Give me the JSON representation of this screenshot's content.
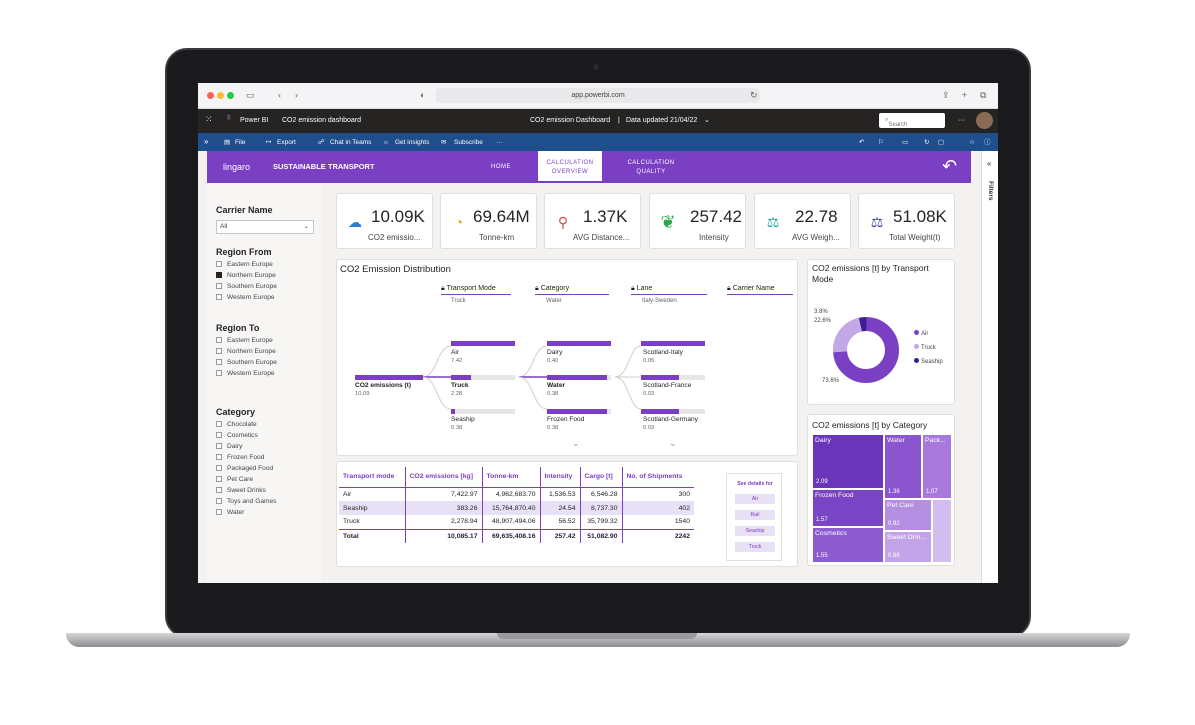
{
  "browser": {
    "url": "app.powerbi.com"
  },
  "pbi": {
    "app_name": "Power BI",
    "report_name": "CO2 emission dashboard",
    "center_title": "CO2 emission Dashboard",
    "data_updated": "Data updated 21/04/22",
    "search_placeholder": "Search"
  },
  "actions": {
    "file": "File",
    "export": "Export",
    "chat": "Chat in Teams",
    "insights": "Get insights",
    "subscribe": "Subscribe",
    "more": "···"
  },
  "header": {
    "logo": "lingaro",
    "title": "SUSTAINABLE TRANSPORT",
    "tabs": [
      {
        "label": "HOME"
      },
      {
        "label": "CALCULATION OVERVIEW"
      },
      {
        "label": "CALCULATION QUALITY"
      }
    ]
  },
  "filters_pane": {
    "label": "Filters"
  },
  "slicers": {
    "carrier": {
      "title": "Carrier Name",
      "value": "All"
    },
    "region_from": {
      "title": "Region From",
      "items": [
        "Eastern Europe",
        "Northern Europe",
        "Southern Europe",
        "Western Europe"
      ]
    },
    "region_to": {
      "title": "Region To",
      "items": [
        "Eastern Europe",
        "Northern Europe",
        "Southern Europe",
        "Western Europe"
      ]
    },
    "category": {
      "title": "Category",
      "items": [
        "Chocolate",
        "Cosmetics",
        "Dairy",
        "Frozen Food",
        "Packaged Food",
        "Pet Care",
        "Sweet Drinks",
        "Toys and Games",
        "Water"
      ]
    }
  },
  "kpis": [
    {
      "value": "10.09K",
      "label": "CO2 emissio...",
      "icon": "cloud-co2-icon"
    },
    {
      "value": "69.64M",
      "label": "Tonne-km",
      "icon": "gauge-icon"
    },
    {
      "value": "1.37K",
      "label": "AVG Distance...",
      "icon": "route-icon"
    },
    {
      "value": "257.42",
      "label": "Intensity",
      "icon": "leaf-icon"
    },
    {
      "value": "22.78",
      "label": "AVG Weigh...",
      "icon": "scale-icon"
    },
    {
      "value": "51.08K",
      "label": "Total Weight(t)",
      "icon": "weight-scale-icon"
    }
  ],
  "tree": {
    "title": "CO2 Emission Distribution",
    "levels": [
      {
        "label": "Transport Mode",
        "selected": "Truck"
      },
      {
        "label": "Category",
        "selected": "Water"
      },
      {
        "label": "Lane",
        "selected": "Italy-Sweden"
      },
      {
        "label": "Carrier Name",
        "selected": ""
      }
    ],
    "root": {
      "label": "CO2 emissions (t)",
      "value": "10.09"
    },
    "modes": [
      {
        "label": "Air",
        "value": "7.42"
      },
      {
        "label": "Truck",
        "value": "2.28"
      },
      {
        "label": "Seaship",
        "value": "0.38"
      }
    ],
    "categories": [
      {
        "label": "Dairy",
        "value": "0.40"
      },
      {
        "label": "Water",
        "value": "0.38"
      },
      {
        "label": "Frozen Food",
        "value": "0.38"
      }
    ],
    "lanes": [
      {
        "label": "Scotland-Italy",
        "value": "0.05"
      },
      {
        "label": "Scotland-France",
        "value": "0.03"
      },
      {
        "label": "Scotland-Germany",
        "value": "0.03"
      }
    ]
  },
  "table": {
    "headers": [
      "Transport mode",
      "CO2 emissions [kg]",
      "Tonne-km",
      "Intensity",
      "Cargo [t]",
      "No. of Shipments"
    ],
    "rows": [
      [
        "Air",
        "7,422.97",
        "4,962,683.70",
        "1,536.53",
        "6,546.28",
        "300"
      ],
      [
        "Seaship",
        "383.26",
        "15,764,870.40",
        "24.54",
        "8,737.30",
        "402"
      ],
      [
        "Truck",
        "2,278.94",
        "48,907,494.06",
        "56.52",
        "35,799.32",
        "1540"
      ],
      [
        "Total",
        "10,085.17",
        "69,635,408.16",
        "257.42",
        "51,082.90",
        "2242"
      ]
    ]
  },
  "see_details": {
    "title": "See details for",
    "buttons": [
      "Air",
      "Rail",
      "Seaship",
      "Truck"
    ]
  },
  "donut": {
    "title": "CO2 emissions [t] by Transport Mode",
    "labels": [
      "3.8%",
      "22.6%",
      "73.6%"
    ],
    "legend": [
      "Air",
      "Truck",
      "Seaship"
    ]
  },
  "treemap": {
    "title": "CO2 emissions [t] by Category",
    "cells": [
      {
        "label": "Dairy",
        "value": "2.09"
      },
      {
        "label": "Water",
        "value": "1.36"
      },
      {
        "label": "Pack...",
        "value": "1.07"
      },
      {
        "label": "Frozen Food",
        "value": "1.57"
      },
      {
        "label": "Pet Care",
        "value": "0.92"
      },
      {
        "label": "Cosmetics",
        "value": "1.55"
      },
      {
        "label": "Sweet Drin...",
        "value": "0.86"
      }
    ]
  },
  "chart_data": {
    "type": "pie",
    "title": "CO2 emissions [t] by Transport Mode",
    "categories": [
      "Air",
      "Truck",
      "Seaship"
    ],
    "values": [
      73.6,
      22.6,
      3.8
    ],
    "colors": [
      "#7b3fc4",
      "#c3a8e6",
      "#3b1e8f"
    ]
  },
  "colors": {
    "accent": "#7b3fc4",
    "dark": "#252423",
    "blue": "#1f4e8c"
  }
}
